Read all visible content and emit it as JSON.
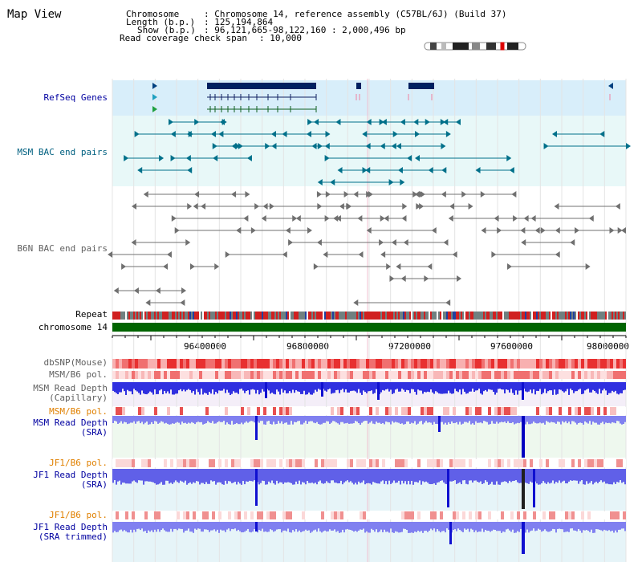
{
  "window": {
    "title": "Map View"
  },
  "header": {
    "chromosome_label": "Chromosome",
    "chromosome_value": ": Chromosome 14, reference assembly (C57BL/6J) (Build 37)",
    "length_label": "Length (b.p.)",
    "length_value": ": 125,194,864",
    "show_label": "Show (b.p.)",
    "show_value": ": 96,121,665-98,122,160 : 2,000,496 bp",
    "coverage_label": "Read coverage check span",
    "coverage_value": ": 10,000"
  },
  "tracks": {
    "refseq": "RefSeq Genes",
    "msm_bac": "MSM BAC end pairs",
    "b6n_bac": "B6N BAC end pairs",
    "repeat": "Repeat",
    "chromosome": "chromosome 14",
    "dbsnp": "dbSNP(Mouse)",
    "msm_b6_pol": "MSM/B6 pol.",
    "msm_depth_cap": "MSM Read Depth\n(Capillary)",
    "msm_b6_pol2": "MSM/B6 pol.",
    "msm_depth_sra": "MSM Read Depth\n(SRA)",
    "jf1_b6_pol": "JF1/B6 pol.",
    "jf1_depth_sra": "JF1 Read Depth\n(SRA)",
    "jf1_b6_pol2": "JF1/B6 pol.",
    "jf1_depth_trim": "JF1 Read Depth\n(SRA trimmed)"
  },
  "axis": {
    "ticks": [
      "96400000",
      "96800000",
      "97200000",
      "97600000",
      "98000000"
    ]
  },
  "colors": {
    "label_blue": "#0000a0",
    "label_teal": "#006080",
    "label_gray": "#606060",
    "label_orange": "#e08000",
    "chromosome_green": "#006400",
    "depth_blue": "#2020e0"
  }
}
